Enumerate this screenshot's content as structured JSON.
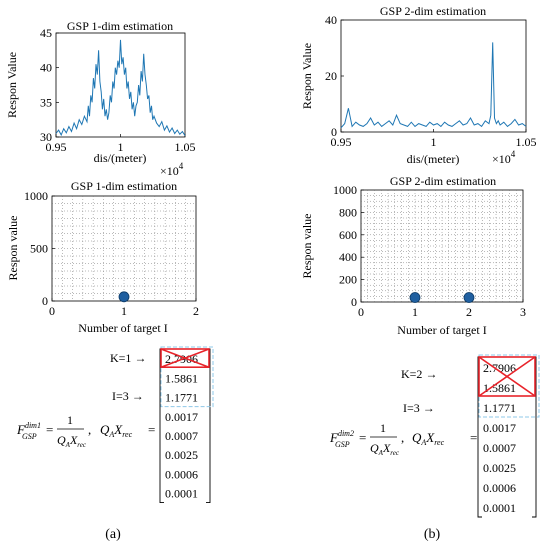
{
  "panel_a": {
    "caption": "(a)",
    "formula": {
      "lhs_main": "F",
      "lhs_sub": "GSP",
      "lhs_sup": "dim1",
      "eq": "=",
      "numerator": "1",
      "denominator": "Q",
      "den_sub": "A",
      "den_x": "X",
      "den_x_sub": "rec",
      "comma": ",",
      "rhs": "Q",
      "rhs_sub": "A",
      "rhs_x": "X",
      "rhs_x_sub": "rec",
      "rhs_eq": "="
    },
    "k_label": "K=1",
    "i_label": "I=3",
    "vector": [
      "2.7906",
      "1.5861",
      "1.1771",
      "0.0017",
      "0.0007",
      "0.0025",
      "0.0006",
      "0.0001"
    ]
  },
  "panel_b": {
    "caption": "(b)",
    "formula": {
      "lhs_main": "F",
      "lhs_sub": "GSP",
      "lhs_sup": "dim2",
      "eq": "=",
      "numerator": "1",
      "denominator": "Q",
      "den_sub": "A",
      "den_x": "X",
      "den_x_sub": "rec",
      "comma": ",",
      "rhs": "Q",
      "rhs_sub": "A",
      "rhs_x": "X",
      "rhs_x_sub": "rec",
      "rhs_eq": "="
    },
    "k_label": "K=2",
    "i_label": "I=3",
    "vector": [
      "2.7906",
      "1.5861",
      "1.1771",
      "0.0017",
      "0.0007",
      "0.0025",
      "0.0006",
      "0.0001"
    ]
  },
  "colors": {
    "line": "#1f77b4",
    "marker": "#1f5fa0",
    "cross": "#e8232a",
    "dashbox": "#8fc8e8"
  },
  "chart_data": [
    {
      "type": "line",
      "title": "GSP 1-dim estimation",
      "xlabel": "dis/(meter)",
      "ylabel": "Respon Value",
      "x_exponent": "×10",
      "x_exponent_power": "4",
      "xlim": [
        0.95,
        1.05
      ],
      "ylim": [
        30,
        45
      ],
      "xticks": [
        "0.95",
        "1",
        "1.05"
      ],
      "yticks": [
        "30",
        "35",
        "40",
        "45"
      ],
      "series": [
        {
          "x": [
            0.95,
            0.952,
            0.954,
            0.956,
            0.958,
            0.96,
            0.962,
            0.964,
            0.966,
            0.968,
            0.97,
            0.972,
            0.974,
            0.975,
            0.976,
            0.977,
            0.978,
            0.979,
            0.98,
            0.981,
            0.982,
            0.983,
            0.984,
            0.985,
            0.986,
            0.987,
            0.988,
            0.989,
            0.99,
            0.991,
            0.992,
            0.993,
            0.994,
            0.995,
            0.996,
            0.997,
            0.998,
            0.999,
            1.0,
            1.001,
            1.002,
            1.003,
            1.004,
            1.005,
            1.006,
            1.007,
            1.008,
            1.009,
            1.01,
            1.011,
            1.012,
            1.013,
            1.014,
            1.015,
            1.016,
            1.017,
            1.018,
            1.019,
            1.02,
            1.021,
            1.022,
            1.023,
            1.024,
            1.025,
            1.026,
            1.028,
            1.03,
            1.032,
            1.034,
            1.036,
            1.038,
            1.04,
            1.042,
            1.044,
            1.046,
            1.048,
            1.05
          ],
          "y": [
            30.5,
            31.0,
            30.3,
            31.2,
            30.6,
            31.5,
            30.8,
            32.0,
            31.2,
            32.5,
            31.8,
            33.0,
            32.2,
            34.5,
            33.0,
            36.0,
            35.0,
            38.5,
            37.0,
            40.5,
            39.0,
            42.5,
            38.0,
            36.5,
            34.0,
            35.5,
            33.0,
            34.0,
            32.5,
            33.5,
            36.0,
            35.0,
            38.0,
            37.0,
            40.0,
            39.0,
            41.0,
            40.0,
            44.0,
            40.5,
            41.5,
            39.0,
            40.0,
            37.0,
            38.0,
            35.5,
            36.5,
            34.0,
            35.0,
            33.0,
            34.5,
            35.0,
            37.5,
            36.0,
            39.5,
            38.0,
            42.0,
            39.0,
            37.5,
            35.5,
            36.0,
            33.5,
            34.5,
            32.5,
            33.0,
            32.0,
            31.5,
            32.2,
            31.0,
            31.6,
            30.7,
            31.3,
            30.5,
            31.0,
            30.4,
            30.8,
            30.2
          ]
        }
      ]
    },
    {
      "type": "line",
      "title": "GSP 2-dim estimation",
      "xlabel": "dis/(meter)",
      "ylabel": "Respon Value",
      "x_exponent": "×10",
      "x_exponent_power": "4",
      "xlim": [
        0.95,
        1.05
      ],
      "ylim": [
        0,
        40
      ],
      "xticks": [
        "0.95",
        "1",
        "1.05"
      ],
      "yticks": [
        "0",
        "20",
        "40"
      ],
      "series": [
        {
          "x": [
            0.95,
            0.952,
            0.954,
            0.956,
            0.958,
            0.96,
            0.962,
            0.964,
            0.966,
            0.968,
            0.97,
            0.972,
            0.974,
            0.976,
            0.978,
            0.98,
            0.982,
            0.984,
            0.986,
            0.988,
            0.99,
            0.992,
            0.994,
            0.996,
            0.998,
            1.0,
            1.002,
            1.004,
            1.006,
            1.008,
            1.01,
            1.012,
            1.014,
            1.016,
            1.018,
            1.02,
            1.022,
            1.024,
            1.026,
            1.028,
            1.03,
            1.031,
            1.032,
            1.033,
            1.034,
            1.035,
            1.036,
            1.038,
            1.04,
            1.042,
            1.044,
            1.046,
            1.048,
            1.05
          ],
          "y": [
            1.5,
            3.0,
            8.5,
            2.0,
            3.5,
            2.5,
            2.0,
            3.0,
            5.0,
            2.5,
            3.5,
            2.0,
            3.0,
            4.0,
            2.5,
            6.0,
            3.0,
            2.5,
            2.0,
            3.5,
            2.0,
            3.0,
            2.5,
            2.0,
            3.5,
            2.5,
            3.0,
            2.0,
            3.5,
            2.5,
            2.0,
            3.0,
            4.0,
            2.5,
            3.0,
            5.0,
            2.5,
            3.0,
            2.0,
            4.0,
            3.0,
            6.0,
            32.0,
            5.0,
            3.0,
            4.0,
            2.5,
            3.5,
            2.0,
            3.0,
            4.5,
            2.5,
            3.0,
            2.0
          ]
        }
      ]
    },
    {
      "type": "scatter",
      "title": "GSP 1-dim estimation",
      "xlabel": "Number of target I",
      "ylabel": "Respon value",
      "xlim": [
        0,
        2
      ],
      "ylim": [
        0,
        1000
      ],
      "xticks": [
        "0",
        "1",
        "2"
      ],
      "yticks": [
        "0",
        "500",
        "1000"
      ],
      "grid": true,
      "series": [
        {
          "x": [
            1
          ],
          "y": [
            40
          ]
        }
      ]
    },
    {
      "type": "scatter",
      "title": "GSP 2-dim estimation",
      "xlabel": "Number of target I",
      "ylabel": "Respon value",
      "xlim": [
        0,
        3
      ],
      "ylim": [
        0,
        1000
      ],
      "xticks": [
        "0",
        "1",
        "2",
        "3"
      ],
      "yticks": [
        "0",
        "200",
        "400",
        "600",
        "800",
        "1000"
      ],
      "grid": true,
      "series": [
        {
          "x": [
            1,
            2
          ],
          "y": [
            40,
            40
          ]
        }
      ]
    }
  ]
}
